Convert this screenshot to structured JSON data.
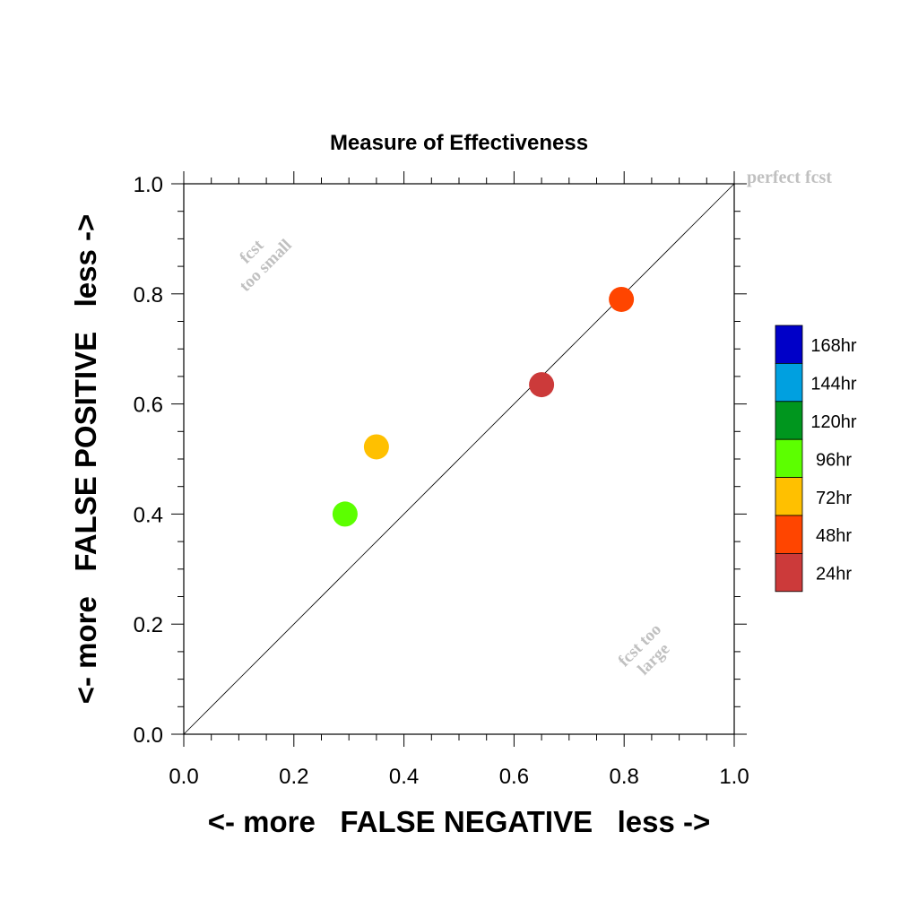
{
  "chart_data": {
    "type": "scatter",
    "title": "Measure of Effectiveness",
    "xlabel": "<- more   FALSE NEGATIVE   less ->",
    "ylabel": "<- more   FALSE POSITIVE   less ->",
    "xlim": [
      0.0,
      1.0
    ],
    "ylim": [
      0.0,
      1.0
    ],
    "x_ticks": [
      "0.0",
      "0.2",
      "0.4",
      "0.6",
      "0.8",
      "1.0"
    ],
    "y_ticks": [
      "0.0",
      "0.2",
      "0.4",
      "0.6",
      "0.8",
      "1.0"
    ],
    "grid": false,
    "diagonal_line": true,
    "annotations": {
      "perfect": "perfect fcst",
      "too_small_line1": "fcst",
      "too_small_line2": "too small",
      "too_large_line1": "fcst too",
      "too_large_line2": "large"
    },
    "points": [
      {
        "label": "24hr",
        "x": 0.65,
        "y": 0.635,
        "color": "#cc3a3a"
      },
      {
        "label": "48hr",
        "x": 0.795,
        "y": 0.79,
        "color": "#ff4500"
      },
      {
        "label": "72hr",
        "x": 0.35,
        "y": 0.522,
        "color": "#ffc000"
      },
      {
        "label": "96hr",
        "x": 0.293,
        "y": 0.4,
        "color": "#5cff00"
      }
    ],
    "legend": {
      "placement": "right",
      "items": [
        {
          "label": "168hr",
          "color": "#0000c8"
        },
        {
          "label": "144hr",
          "color": "#00a0e0"
        },
        {
          "label": "120hr",
          "color": "#00961e"
        },
        {
          "label": "96hr",
          "color": "#5cff00"
        },
        {
          "label": "72hr",
          "color": "#ffc000"
        },
        {
          "label": "48hr",
          "color": "#ff4500"
        },
        {
          "label": "24hr",
          "color": "#cc3a3a"
        }
      ]
    }
  }
}
